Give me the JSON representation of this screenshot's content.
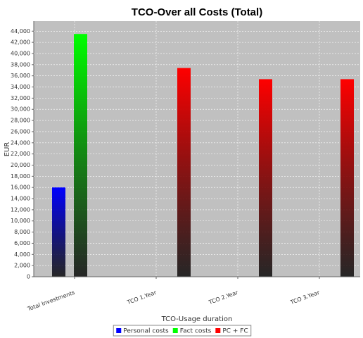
{
  "chart_data": {
    "type": "bar",
    "title": "TCO-Over all Costs (Total)",
    "x_label": "TCO-Usage duration",
    "y_label": "EUR",
    "categories": [
      "Total Investments",
      "TCO 1.Year",
      "TCO 2.Year",
      "TCO 3.Year"
    ],
    "series": [
      {
        "name": "Personal costs",
        "color": "#0000ff",
        "values": [
          16000,
          null,
          null,
          null
        ]
      },
      {
        "name": "Fact costs",
        "color": "#00ff00",
        "values": [
          43500,
          null,
          null,
          null
        ]
      },
      {
        "name": "PC + FC",
        "color": "#ff0000",
        "values": [
          null,
          37400,
          35400,
          35400
        ]
      }
    ],
    "ylim": [
      0,
      45800
    ],
    "yticks": [
      0,
      {
        "value": 2000,
        "label": "2,000"
      },
      {
        "value": 4000,
        "label": "4,000"
      },
      {
        "value": 6000,
        "label": "6,000"
      },
      {
        "value": 8000,
        "label": "8,000"
      },
      {
        "value": 10000,
        "label": "10,000"
      },
      {
        "value": 12000,
        "label": "12,000"
      },
      {
        "value": 14000,
        "label": "14,000"
      },
      {
        "value": 16000,
        "label": "16,000"
      },
      {
        "value": 18000,
        "label": "18,000"
      },
      {
        "value": 20000,
        "label": "20,000"
      },
      {
        "value": 22000,
        "label": "22,000"
      },
      {
        "value": 24000,
        "label": "24,000"
      },
      {
        "value": 26000,
        "label": "26,000"
      },
      {
        "value": 28000,
        "label": "28,000"
      },
      {
        "value": 30000,
        "label": "30,000"
      },
      {
        "value": 32000,
        "label": "32,000"
      },
      {
        "value": 34000,
        "label": "34,000"
      },
      {
        "value": 36000,
        "label": "36,000"
      },
      {
        "value": 38000,
        "label": "38,000"
      },
      {
        "value": 40000,
        "label": "40,000"
      },
      {
        "value": 42000,
        "label": "42,000"
      },
      {
        "value": 44000,
        "label": "44,000"
      }
    ],
    "grid": true,
    "legend": "bottom"
  }
}
